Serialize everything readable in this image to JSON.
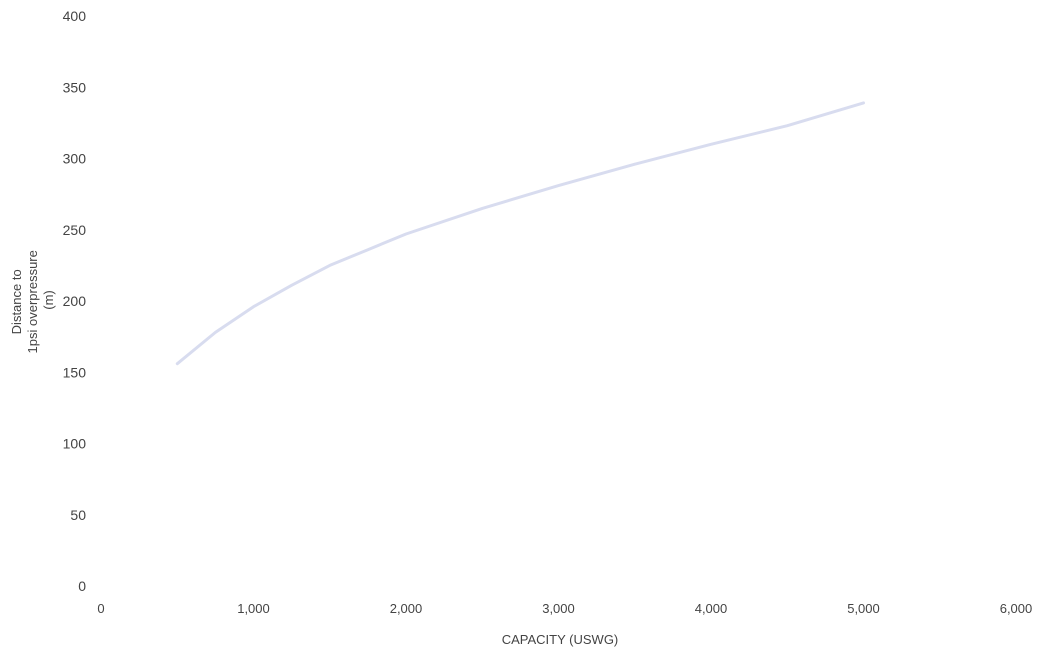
{
  "chart_data": {
    "type": "line",
    "title": "",
    "xlabel": "CAPACITY (USWG)",
    "ylabel_lines": [
      "Distance to",
      "1psi overpressure",
      "(m)"
    ],
    "xlim": [
      0,
      6000
    ],
    "ylim": [
      0,
      400
    ],
    "x_ticks": [
      0,
      1000,
      2000,
      3000,
      4000,
      5000,
      6000
    ],
    "x_tick_labels": [
      "0",
      "1,000",
      "2,000",
      "3,000",
      "4,000",
      "5,000",
      "6,000"
    ],
    "y_ticks": [
      0,
      50,
      100,
      150,
      200,
      250,
      300,
      350,
      400
    ],
    "y_tick_labels": [
      "0",
      "50",
      "100",
      "150",
      "200",
      "250",
      "300",
      "350",
      "400"
    ],
    "grid": false,
    "legend": "none",
    "series": [
      {
        "color": "#d8dcef",
        "x": [
          500,
          750,
          1000,
          1250,
          1500,
          1750,
          2000,
          2500,
          3000,
          3500,
          4000,
          4500,
          5000
        ],
        "y": [
          156,
          178,
          196,
          211,
          225,
          236,
          247,
          265,
          281,
          296,
          310,
          323,
          339
        ]
      }
    ]
  }
}
